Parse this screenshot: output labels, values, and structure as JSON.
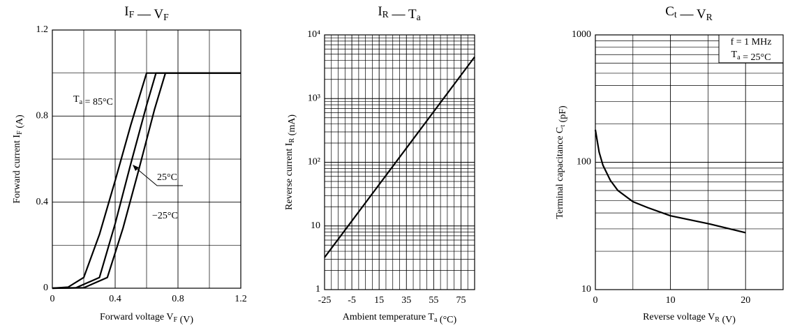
{
  "chart_data": [
    {
      "type": "line",
      "title": "IF — VF",
      "xlabel": "Forward voltage VF (V)",
      "ylabel": "Forward current IF (A)",
      "xlim": [
        0,
        1.2
      ],
      "ylim": [
        0,
        1.2
      ],
      "xticks": [
        0,
        0.4,
        0.8,
        1.2
      ],
      "yticks": [
        0,
        0.4,
        0.8,
        1.2
      ],
      "xgrid": [
        0.2,
        0.6,
        1.0
      ],
      "ygrid": [
        0.2,
        0.6,
        1.0
      ],
      "grid": true,
      "log_y": false,
      "series": [
        {
          "name": "Ta = 85°C",
          "color": "#000000",
          "x": [
            0,
            0.1,
            0.2,
            0.3,
            0.4,
            0.5,
            0.6,
            1.2
          ],
          "values": [
            0,
            0.005,
            0.05,
            0.25,
            0.5,
            0.76,
            1.0,
            1.0
          ]
        },
        {
          "name": "25°C",
          "color": "#000000",
          "x": [
            0,
            0.15,
            0.3,
            0.4,
            0.5,
            0.6,
            0.66,
            1.2
          ],
          "values": [
            0,
            0.002,
            0.05,
            0.3,
            0.58,
            0.85,
            1.0,
            1.0
          ]
        },
        {
          "name": "−25°C",
          "color": "#000000",
          "x": [
            0,
            0.2,
            0.35,
            0.45,
            0.55,
            0.65,
            0.72,
            1.2
          ],
          "values": [
            0,
            0.002,
            0.05,
            0.28,
            0.55,
            0.83,
            1.0,
            1.0
          ]
        }
      ]
    },
    {
      "type": "line",
      "title": "IR — Ta",
      "xlabel": "Ambient temperature Ta (°C)",
      "ylabel": "Reverse current IR (mA)",
      "xlim": [
        -25,
        85
      ],
      "ylim": [
        1,
        10000
      ],
      "xticks": [
        -25,
        -5,
        15,
        35,
        55,
        75
      ],
      "yticks": [
        1,
        10,
        {
          "value": 100,
          "label": "10²"
        },
        {
          "value": 1000,
          "label": "10³"
        },
        {
          "value": 10000,
          "label": "10⁴"
        }
      ],
      "xgrid": [
        -20,
        -15,
        -10,
        0,
        5,
        10,
        20,
        25,
        30,
        40,
        45,
        50,
        60,
        65,
        70,
        80
      ],
      "ygrid": [
        2,
        3,
        4,
        5,
        6,
        7,
        8,
        9,
        20,
        30,
        40,
        50,
        60,
        70,
        80,
        90,
        200,
        300,
        400,
        500,
        600,
        700,
        800,
        900,
        2000,
        3000,
        4000,
        5000,
        6000,
        7000,
        8000,
        9000
      ],
      "grid": true,
      "log_y": true,
      "series": [
        {
          "color": "#000000",
          "x": [
            -25,
            30,
            85
          ],
          "values": [
            3.2,
            120,
            4500
          ]
        }
      ]
    },
    {
      "type": "line",
      "title": "Ct — VR",
      "xlabel": "Reverse voltage VR (V)",
      "ylabel": "Terminal capacitance Ct (pF)",
      "xlim": [
        0,
        25
      ],
      "ylim": [
        10,
        1000
      ],
      "xticks": [
        0,
        10,
        20
      ],
      "yticks": [
        10,
        100,
        1000
      ],
      "xgrid": [
        5,
        15
      ],
      "ygrid": [
        20,
        30,
        40,
        50,
        60,
        70,
        80,
        90,
        200,
        300,
        400,
        500,
        600,
        700,
        800,
        900
      ],
      "grid": true,
      "log_y": true,
      "annotations": [
        "f = 1 MHz",
        "Ta = 25°C"
      ],
      "series": [
        {
          "color": "#000000",
          "x": [
            0,
            0.5,
            1,
            2,
            3,
            5,
            7,
            10,
            15,
            20
          ],
          "values": [
            180,
            120,
            95,
            72,
            60,
            49,
            44,
            38,
            33,
            28
          ]
        }
      ]
    }
  ]
}
